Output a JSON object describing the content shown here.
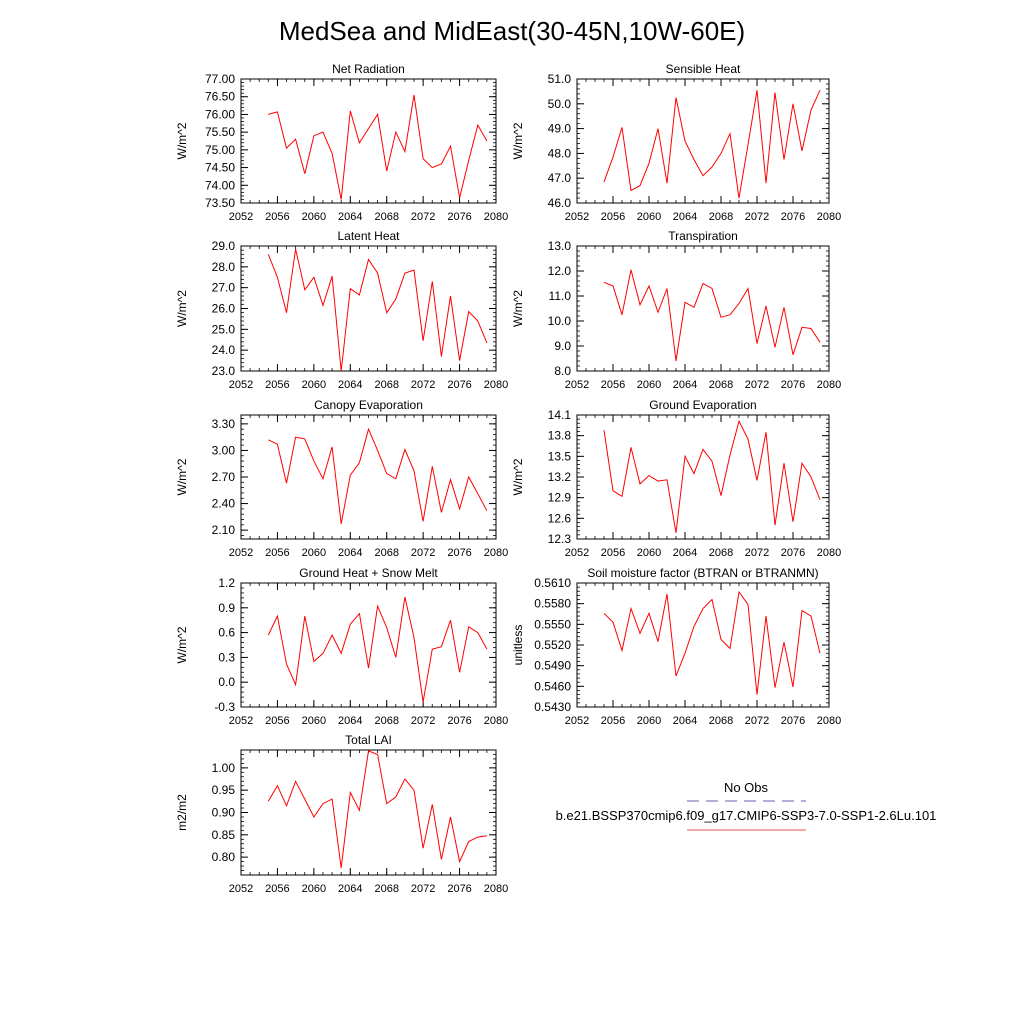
{
  "title": "MedSea and MidEast(30-45N,10W-60E)",
  "legend": {
    "obs_label": "No Obs",
    "model_label": "b.e21.BSSP370cmip6.f09_g17.CMIP6-SSP3-7.0-SSP1-2.6Lu.101",
    "obs_color": "#6060b0",
    "model_color": "#e05050"
  },
  "line_color": "#ff0000",
  "chart_data": [
    {
      "type": "line",
      "title": "Net Radiation",
      "ylabel": "W/m^2",
      "xlim": [
        2052,
        2080
      ],
      "ylim": [
        73.5,
        77.0
      ],
      "xticks": [
        2052,
        2056,
        2060,
        2064,
        2068,
        2072,
        2076,
        2080
      ],
      "yticks": [
        73.5,
        74.0,
        74.5,
        75.0,
        75.5,
        76.0,
        76.5,
        77.0
      ],
      "ytick_labels": [
        "73.50",
        "74.00",
        "74.50",
        "75.00",
        "75.50",
        "76.00",
        "76.50",
        "77.00"
      ],
      "x": [
        2055,
        2056,
        2057,
        2058,
        2059,
        2060,
        2061,
        2062,
        2063,
        2064,
        2065,
        2066,
        2067,
        2068,
        2069,
        2070,
        2071,
        2072,
        2073,
        2074,
        2075,
        2076,
        2077,
        2078,
        2079
      ],
      "y": [
        76.0,
        76.07,
        75.05,
        75.3,
        74.33,
        75.4,
        75.5,
        74.9,
        73.6,
        76.1,
        75.2,
        75.6,
        76.0,
        74.4,
        75.5,
        74.95,
        76.55,
        74.75,
        74.5,
        74.6,
        75.1,
        73.65,
        74.7,
        75.7,
        75.25
      ]
    },
    {
      "type": "line",
      "title": "Sensible Heat",
      "ylabel": "W/m^2",
      "xlim": [
        2052,
        2080
      ],
      "ylim": [
        46.0,
        51.0
      ],
      "xticks": [
        2052,
        2056,
        2060,
        2064,
        2068,
        2072,
        2076,
        2080
      ],
      "yticks": [
        46,
        47,
        48,
        49,
        50,
        51
      ],
      "ytick_labels": [
        "46.0",
        "47.0",
        "48.0",
        "49.0",
        "50.0",
        "51.0"
      ],
      "x": [
        2055,
        2056,
        2057,
        2058,
        2059,
        2060,
        2061,
        2062,
        2063,
        2064,
        2065,
        2066,
        2067,
        2068,
        2069,
        2070,
        2071,
        2072,
        2073,
        2074,
        2075,
        2076,
        2077,
        2078,
        2079
      ],
      "y": [
        46.85,
        47.85,
        49.05,
        46.5,
        46.7,
        47.6,
        49.0,
        46.8,
        50.25,
        48.5,
        47.75,
        47.1,
        47.45,
        48.0,
        48.8,
        46.2,
        48.35,
        50.55,
        46.8,
        50.45,
        47.75,
        50.0,
        48.1,
        49.75,
        50.55
      ]
    },
    {
      "type": "line",
      "title": "Latent Heat",
      "ylabel": "W/m^2",
      "xlim": [
        2052,
        2080
      ],
      "ylim": [
        23.0,
        29.0
      ],
      "xticks": [
        2052,
        2056,
        2060,
        2064,
        2068,
        2072,
        2076,
        2080
      ],
      "yticks": [
        23,
        24,
        25,
        26,
        27,
        28,
        29
      ],
      "ytick_labels": [
        "23.0",
        "24.0",
        "25.0",
        "26.0",
        "27.0",
        "28.0",
        "29.0"
      ],
      "x": [
        2055,
        2056,
        2057,
        2058,
        2059,
        2060,
        2061,
        2062,
        2063,
        2064,
        2065,
        2066,
        2067,
        2068,
        2069,
        2070,
        2071,
        2072,
        2073,
        2074,
        2075,
        2076,
        2077,
        2078,
        2079
      ],
      "y": [
        28.6,
        27.5,
        25.8,
        28.85,
        26.9,
        27.5,
        26.15,
        27.55,
        23.0,
        26.95,
        26.65,
        28.35,
        27.7,
        25.8,
        26.45,
        27.7,
        27.85,
        24.45,
        27.3,
        23.7,
        26.6,
        23.5,
        25.85,
        25.4,
        24.35
      ]
    },
    {
      "type": "line",
      "title": "Transpiration",
      "ylabel": "W/m^2",
      "xlim": [
        2052,
        2080
      ],
      "ylim": [
        8.0,
        13.0
      ],
      "xticks": [
        2052,
        2056,
        2060,
        2064,
        2068,
        2072,
        2076,
        2080
      ],
      "yticks": [
        8,
        9,
        10,
        11,
        12,
        13
      ],
      "ytick_labels": [
        "8.0",
        "9.0",
        "10.0",
        "11.0",
        "12.0",
        "13.0"
      ],
      "x": [
        2055,
        2056,
        2057,
        2058,
        2059,
        2060,
        2061,
        2062,
        2063,
        2064,
        2065,
        2066,
        2067,
        2068,
        2069,
        2070,
        2071,
        2072,
        2073,
        2074,
        2075,
        2076,
        2077,
        2078,
        2079
      ],
      "y": [
        11.55,
        11.4,
        10.25,
        12.05,
        10.65,
        11.4,
        10.35,
        11.3,
        8.4,
        10.75,
        10.55,
        11.5,
        11.3,
        10.15,
        10.25,
        10.7,
        11.3,
        9.1,
        10.6,
        8.95,
        10.55,
        8.65,
        9.75,
        9.7,
        9.15
      ]
    },
    {
      "type": "line",
      "title": "Canopy Evaporation",
      "ylabel": "W/m^2",
      "xlim": [
        2052,
        2080
      ],
      "ylim": [
        2.0,
        3.4
      ],
      "xticks": [
        2052,
        2056,
        2060,
        2064,
        2068,
        2072,
        2076,
        2080
      ],
      "yticks": [
        2.1,
        2.4,
        2.7,
        3.0,
        3.3
      ],
      "ytick_labels": [
        "2.10",
        "2.40",
        "2.70",
        "3.00",
        "3.30"
      ],
      "x": [
        2055,
        2056,
        2057,
        2058,
        2059,
        2060,
        2061,
        2062,
        2063,
        2064,
        2065,
        2066,
        2067,
        2068,
        2069,
        2070,
        2071,
        2072,
        2073,
        2074,
        2075,
        2076,
        2077,
        2078,
        2079
      ],
      "y": [
        3.12,
        3.07,
        2.63,
        3.15,
        3.13,
        2.88,
        2.68,
        3.04,
        2.17,
        2.72,
        2.86,
        3.24,
        3.0,
        2.74,
        2.68,
        3.01,
        2.77,
        2.2,
        2.82,
        2.3,
        2.67,
        2.34,
        2.7,
        2.51,
        2.32
      ]
    },
    {
      "type": "line",
      "title": "Ground Evaporation",
      "ylabel": "W/m^2",
      "xlim": [
        2052,
        2080
      ],
      "ylim": [
        12.3,
        14.1
      ],
      "xticks": [
        2052,
        2056,
        2060,
        2064,
        2068,
        2072,
        2076,
        2080
      ],
      "yticks": [
        12.3,
        12.6,
        12.9,
        13.2,
        13.5,
        13.8,
        14.1
      ],
      "ytick_labels": [
        "12.3",
        "12.6",
        "12.9",
        "13.2",
        "13.5",
        "13.8",
        "14.1"
      ],
      "x": [
        2055,
        2056,
        2057,
        2058,
        2059,
        2060,
        2061,
        2062,
        2063,
        2064,
        2065,
        2066,
        2067,
        2068,
        2069,
        2070,
        2071,
        2072,
        2073,
        2074,
        2075,
        2076,
        2077,
        2078,
        2079
      ],
      "y": [
        13.88,
        13.0,
        12.92,
        13.63,
        13.1,
        13.22,
        13.14,
        13.16,
        12.39,
        13.5,
        13.25,
        13.6,
        13.43,
        12.93,
        13.52,
        14.01,
        13.75,
        13.15,
        13.85,
        12.5,
        13.4,
        12.55,
        13.4,
        13.2,
        12.87
      ]
    },
    {
      "type": "line",
      "title": "Ground Heat + Snow Melt",
      "ylabel": "W/m^2",
      "xlim": [
        2052,
        2080
      ],
      "ylim": [
        -0.3,
        1.2
      ],
      "xticks": [
        2052,
        2056,
        2060,
        2064,
        2068,
        2072,
        2076,
        2080
      ],
      "yticks": [
        -0.3,
        0.0,
        0.3,
        0.6,
        0.9,
        1.2
      ],
      "ytick_labels": [
        "-0.3",
        "0.0",
        "0.3",
        "0.6",
        "0.9",
        "1.2"
      ],
      "x": [
        2055,
        2056,
        2057,
        2058,
        2059,
        2060,
        2061,
        2062,
        2063,
        2064,
        2065,
        2066,
        2067,
        2068,
        2069,
        2070,
        2071,
        2072,
        2073,
        2074,
        2075,
        2076,
        2077,
        2078,
        2079
      ],
      "y": [
        0.57,
        0.8,
        0.22,
        -0.03,
        0.8,
        0.25,
        0.35,
        0.57,
        0.35,
        0.7,
        0.83,
        0.17,
        0.92,
        0.66,
        0.3,
        1.03,
        0.54,
        -0.24,
        0.4,
        0.43,
        0.75,
        0.12,
        0.67,
        0.6,
        0.4
      ]
    },
    {
      "type": "line",
      "title": "Soil moisture factor (BTRAN or BTRANMN)",
      "ylabel": "unitless",
      "xlim": [
        2052,
        2080
      ],
      "ylim": [
        0.543,
        0.561
      ],
      "xticks": [
        2052,
        2056,
        2060,
        2064,
        2068,
        2072,
        2076,
        2080
      ],
      "yticks": [
        0.543,
        0.546,
        0.549,
        0.552,
        0.555,
        0.558,
        0.561
      ],
      "ytick_labels": [
        "0.5430",
        "0.5460",
        "0.5490",
        "0.5520",
        "0.5550",
        "0.5580",
        "0.5610"
      ],
      "x": [
        2055,
        2056,
        2057,
        2058,
        2059,
        2060,
        2061,
        2062,
        2063,
        2064,
        2065,
        2066,
        2067,
        2068,
        2069,
        2070,
        2071,
        2072,
        2073,
        2074,
        2075,
        2076,
        2077,
        2078,
        2079
      ],
      "y": [
        0.5566,
        0.5553,
        0.5512,
        0.5573,
        0.5537,
        0.5566,
        0.5525,
        0.5594,
        0.5475,
        0.5508,
        0.5547,
        0.5573,
        0.5586,
        0.5528,
        0.5515,
        0.5597,
        0.5579,
        0.5448,
        0.5562,
        0.5458,
        0.5524,
        0.5459,
        0.557,
        0.5562,
        0.5508
      ]
    },
    {
      "type": "line",
      "title": "Total LAI",
      "ylabel": "m2/m2",
      "xlim": [
        2052,
        2080
      ],
      "ylim": [
        0.76,
        1.04
      ],
      "xticks": [
        2052,
        2056,
        2060,
        2064,
        2068,
        2072,
        2076,
        2080
      ],
      "yticks": [
        0.8,
        0.85,
        0.9,
        0.95,
        1.0
      ],
      "ytick_labels": [
        "0.80",
        "0.85",
        "0.90",
        "0.95",
        "1.00"
      ],
      "x": [
        2055,
        2056,
        2057,
        2058,
        2059,
        2060,
        2061,
        2062,
        2063,
        2064,
        2065,
        2066,
        2067,
        2068,
        2069,
        2070,
        2071,
        2072,
        2073,
        2074,
        2075,
        2076,
        2077,
        2078,
        2079
      ],
      "y": [
        0.925,
        0.96,
        0.915,
        0.97,
        0.93,
        0.89,
        0.92,
        0.93,
        0.776,
        0.945,
        0.905,
        1.038,
        1.03,
        0.92,
        0.935,
        0.975,
        0.95,
        0.82,
        0.918,
        0.795,
        0.89,
        0.79,
        0.835,
        0.845,
        0.848
      ]
    }
  ]
}
